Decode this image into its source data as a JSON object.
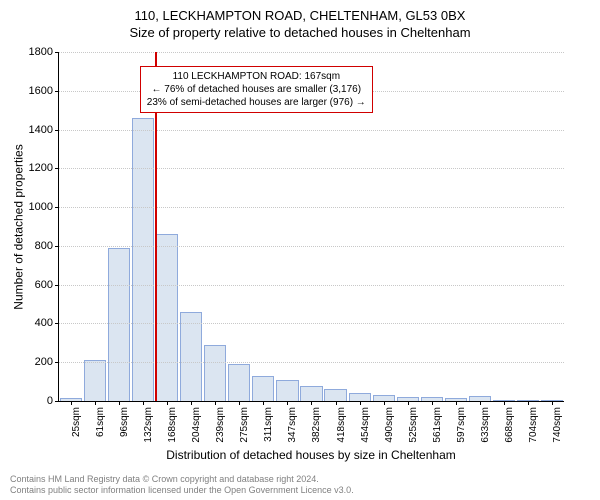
{
  "header": {
    "address": "110, LECKHAMPTON ROAD, CHELTENHAM, GL53 0BX",
    "subtitle": "Size of property relative to detached houses in Cheltenham"
  },
  "chart": {
    "type": "histogram",
    "ylabel": "Number of detached properties",
    "xlabel": "Distribution of detached houses by size in Cheltenham",
    "ylim": [
      0,
      1800
    ],
    "ytick_step": 200,
    "y_ticks": [
      0,
      200,
      400,
      600,
      800,
      1000,
      1200,
      1400,
      1600,
      1800
    ],
    "categories": [
      "25sqm",
      "61sqm",
      "96sqm",
      "132sqm",
      "168sqm",
      "204sqm",
      "239sqm",
      "275sqm",
      "311sqm",
      "347sqm",
      "382sqm",
      "418sqm",
      "454sqm",
      "490sqm",
      "525sqm",
      "561sqm",
      "597sqm",
      "633sqm",
      "668sqm",
      "704sqm",
      "740sqm"
    ],
    "values": [
      15,
      210,
      790,
      1460,
      860,
      460,
      290,
      190,
      130,
      110,
      80,
      60,
      40,
      30,
      20,
      20,
      15,
      25,
      0,
      0,
      0
    ],
    "bar_fill": "#dbe5f1",
    "bar_stroke": "#8faadc",
    "grid_color": "#c8c8c8",
    "background_color": "#ffffff",
    "axis_color": "#000000",
    "label_fontsize": 12,
    "tick_fontsize": 11,
    "x_tick_fontsize": 10,
    "marker": {
      "position_index": 4,
      "color": "#d00000",
      "box_lines": [
        "110 LECKHAMPTON ROAD: 167sqm",
        "← 76% of detached houses are smaller (3,176)",
        "23% of semi-detached houses are larger (976) →"
      ]
    }
  },
  "footer": {
    "line1": "Contains HM Land Registry data © Crown copyright and database right 2024.",
    "line2": "Contains public sector information licensed under the Open Government Licence v3.0."
  }
}
